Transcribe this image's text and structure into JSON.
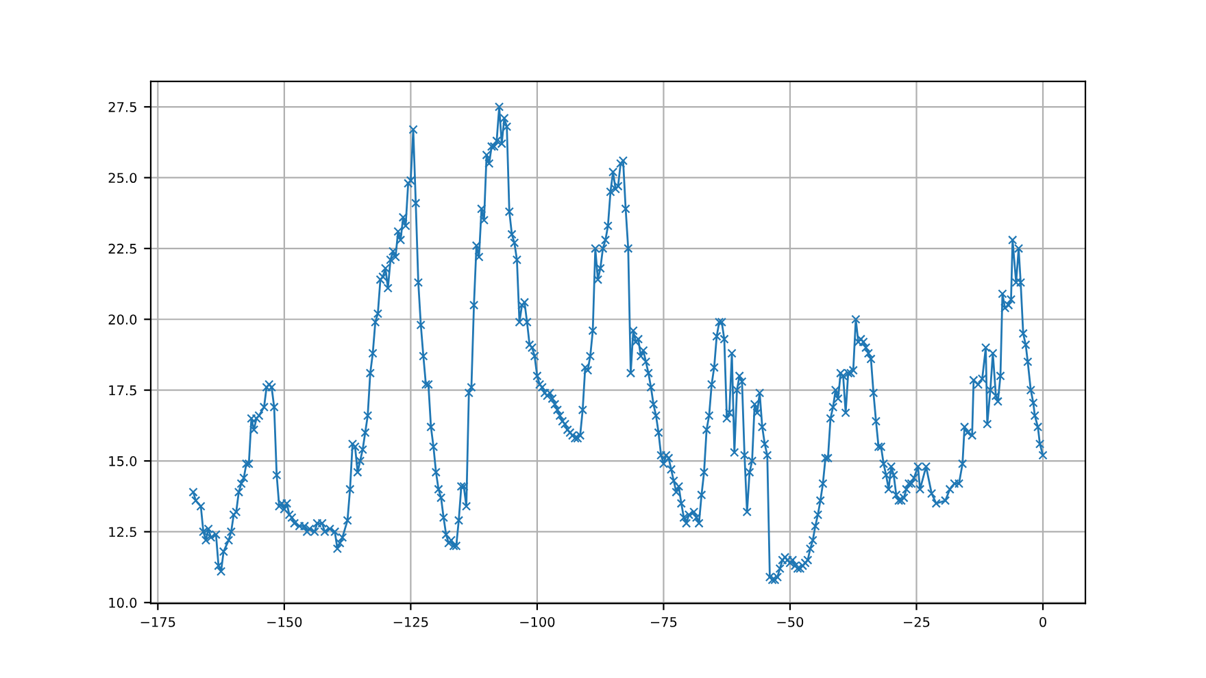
{
  "chart_data": {
    "type": "line",
    "marker": "cross",
    "line_style": "solid",
    "grid": true,
    "x": [
      -168,
      -167.5,
      -166.5,
      -166,
      -165.5,
      -165,
      -164.5,
      -163.5,
      -163,
      -162.5,
      -162,
      -161,
      -160.5,
      -160,
      -159.5,
      -159,
      -158.5,
      -158,
      -157.5,
      -157,
      -156.5,
      -156,
      -155.5,
      -155,
      -154,
      -153.5,
      -153,
      -152.5,
      -152,
      -151.5,
      -151,
      -150.5,
      -150,
      -149.5,
      -149,
      -148.5,
      -148,
      -147,
      -146,
      -145.5,
      -145,
      -144,
      -143.5,
      -142.5,
      -142,
      -141,
      -140,
      -139.5,
      -139,
      -138.5,
      -137.5,
      -137,
      -136.5,
      -136,
      -135.5,
      -135,
      -134.5,
      -134,
      -133.5,
      -133,
      -132.5,
      -132,
      -131.5,
      -131,
      -130.5,
      -130,
      -129.5,
      -129,
      -128.5,
      -128,
      -127.5,
      -127,
      -126.5,
      -126,
      -125.5,
      -125,
      -124.5,
      -124,
      -123.5,
      -123,
      -122.5,
      -122,
      -121.5,
      -121,
      -120.5,
      -120,
      -119.5,
      -119,
      -118.5,
      -118,
      -117.5,
      -117,
      -116.5,
      -116,
      -115.5,
      -115,
      -114.5,
      -114,
      -113.5,
      -113,
      -112.5,
      -112,
      -111.5,
      -111,
      -110.5,
      -110,
      -109.5,
      -109,
      -108.5,
      -108,
      -107.5,
      -107,
      -106.5,
      -106,
      -105.5,
      -105,
      -104.5,
      -104,
      -103.5,
      -103,
      -102.5,
      -102,
      -101.5,
      -101,
      -100.5,
      -100,
      -99.5,
      -99,
      -98.5,
      -98,
      -97.5,
      -97,
      -96.5,
      -96,
      -95.5,
      -95,
      -94.5,
      -94,
      -93.5,
      -93,
      -92.5,
      -92,
      -91.5,
      -91,
      -90.5,
      -90,
      -89.5,
      -89,
      -88.5,
      -88,
      -87.5,
      -87,
      -86.5,
      -86,
      -85.5,
      -85,
      -84.5,
      -84,
      -83.5,
      -83,
      -82.5,
      -82,
      -81.5,
      -81,
      -80.5,
      -80,
      -79.5,
      -79,
      -78.5,
      -78,
      -77.5,
      -77,
      -76.5,
      -76,
      -75.5,
      -75,
      -74.5,
      -74,
      -73.5,
      -73,
      -72.5,
      -72,
      -71.5,
      -71,
      -70.5,
      -70,
      -69,
      -68.5,
      -68,
      -67.5,
      -67,
      -66.5,
      -66,
      -65.5,
      -65,
      -64.5,
      -64,
      -63.5,
      -63,
      -62.5,
      -62,
      -61.5,
      -61,
      -60.5,
      -60,
      -59.5,
      -59,
      -58.5,
      -58,
      -57.5,
      -57,
      -56.5,
      -56,
      -55.5,
      -55,
      -54.5,
      -54,
      -53.5,
      -53,
      -52.5,
      -52,
      -51.5,
      -51,
      -50.5,
      -50,
      -49.5,
      -49,
      -48.5,
      -48,
      -47.5,
      -47,
      -46.5,
      -46,
      -45.5,
      -45,
      -44.5,
      -44,
      -43.5,
      -43,
      -42.5,
      -42,
      -41.5,
      -41,
      -40.5,
      -40,
      -39.5,
      -39,
      -38.5,
      -38,
      -37.5,
      -37,
      -36.5,
      -36,
      -35.5,
      -35,
      -34.5,
      -34,
      -33.5,
      -33,
      -32.5,
      -32,
      -31.5,
      -31,
      -30.5,
      -30,
      -29.5,
      -29,
      -28.5,
      -28,
      -27.5,
      -27,
      -26.5,
      -26,
      -25.5,
      -24.7,
      -24.3,
      -23.1,
      -22.0,
      -21.1,
      -19.3,
      -18.4,
      -17.5,
      -16.6,
      -15.9,
      -15.5,
      -14.9,
      -14.0,
      -13.7,
      -12.8,
      -12.0,
      -11.3,
      -11.0,
      -10.4,
      -9.9,
      -9.3,
      -8.9,
      -8.4,
      -8.0,
      -7.5,
      -6.8,
      -6.3,
      -6.0,
      -5.3,
      -4.8,
      -4.4,
      -3.9,
      -3.4,
      -3.0,
      -2.4,
      -1.9,
      -1.6,
      -1.0,
      -0.6,
      0
    ],
    "series": [
      {
        "color": "#1f77b4",
        "values": [
          13.9,
          13.6,
          13.4,
          12.5,
          12.2,
          12.6,
          12.3,
          12.4,
          11.3,
          11.1,
          11.8,
          12.2,
          12.5,
          13.1,
          13.2,
          13.9,
          14.2,
          14.4,
          14.9,
          14.9,
          16.5,
          16.1,
          16.5,
          16.6,
          16.9,
          17.6,
          17.7,
          17.6,
          16.9,
          14.5,
          13.4,
          13.5,
          13.3,
          13.5,
          13.1,
          13.0,
          12.8,
          12.7,
          12.7,
          12.5,
          12.6,
          12.5,
          12.8,
          12.8,
          12.5,
          12.6,
          12.5,
          11.9,
          12.1,
          12.3,
          12.9,
          14.0,
          15.6,
          15.5,
          14.6,
          15.0,
          15.4,
          16.0,
          16.6,
          18.1,
          18.8,
          19.9,
          20.2,
          21.4,
          21.5,
          21.8,
          21.1,
          22.1,
          22.4,
          22.2,
          23.1,
          22.8,
          23.6,
          23.3,
          24.8,
          24.9,
          26.7,
          24.1,
          21.3,
          19.8,
          18.7,
          17.7,
          17.7,
          16.2,
          15.5,
          14.6,
          14.0,
          13.7,
          13.0,
          12.4,
          12.1,
          12.2,
          12.0,
          12.0,
          12.9,
          14.1,
          14.1,
          13.4,
          17.4,
          17.6,
          20.5,
          22.6,
          22.2,
          23.9,
          23.5,
          25.8,
          25.5,
          26.1,
          26.1,
          26.3,
          27.5,
          26.2,
          27.1,
          26.8,
          23.8,
          23.0,
          22.7,
          22.1,
          19.9,
          20.5,
          20.6,
          19.9,
          19.1,
          19.0,
          18.7,
          18.0,
          17.7,
          17.6,
          17.4,
          17.3,
          17.4,
          17.2,
          17.0,
          16.8,
          16.6,
          16.4,
          16.3,
          16.1,
          16.0,
          15.9,
          15.8,
          15.8,
          15.9,
          16.8,
          18.3,
          18.2,
          18.7,
          19.6,
          22.5,
          21.4,
          21.8,
          22.5,
          22.8,
          23.3,
          24.5,
          25.2,
          24.6,
          24.7,
          25.5,
          25.6,
          23.9,
          22.5,
          18.1,
          19.6,
          19.2,
          19.3,
          18.7,
          18.9,
          18.5,
          18.1,
          17.6,
          17.0,
          16.6,
          16.0,
          15.2,
          14.9,
          15.2,
          15.1,
          14.7,
          14.3,
          13.9,
          14.1,
          13.5,
          13.0,
          12.8,
          13.1,
          13.2,
          13.0,
          12.8,
          13.8,
          14.6,
          16.1,
          16.6,
          17.7,
          18.3,
          19.4,
          19.9,
          19.9,
          19.3,
          16.5,
          16.7,
          18.8,
          15.3,
          17.5,
          18.0,
          17.8,
          15.2,
          13.2,
          14.6,
          15.0,
          17.0,
          16.7,
          17.4,
          16.2,
          15.6,
          15.2,
          10.9,
          10.8,
          10.8,
          10.9,
          11.2,
          11.5,
          11.6,
          11.5,
          11.4,
          11.5,
          11.3,
          11.2,
          11.2,
          11.3,
          11.4,
          11.5,
          11.9,
          12.2,
          12.7,
          13.1,
          13.6,
          14.2,
          15.1,
          15.1,
          16.5,
          16.9,
          17.5,
          17.2,
          18.1,
          18.0,
          16.7,
          18.1,
          18.1,
          18.2,
          20.0,
          19.2,
          19.3,
          19.2,
          19.0,
          18.8,
          18.6,
          17.4,
          16.4,
          15.5,
          15.5,
          14.9,
          14.5,
          14.0,
          14.8,
          14.5,
          13.8,
          13.6,
          13.6,
          13.7,
          14.0,
          14.2,
          14.2,
          14.4,
          14.8,
          14.0,
          14.8,
          13.85,
          13.5,
          13.6,
          14.0,
          14.2,
          14.2,
          14.9,
          16.2,
          16.0,
          15.9,
          17.85,
          17.7,
          17.9,
          19.0,
          16.3,
          17.5,
          18.8,
          17.3,
          17.1,
          18.0,
          20.9,
          20.4,
          20.5,
          20.7,
          22.8,
          21.3,
          22.5,
          21.3,
          19.5,
          19.1,
          18.5,
          17.5,
          17.05,
          16.6,
          16.2,
          15.6,
          15.2
        ]
      }
    ],
    "xlim": [
      -176.4,
      8.4
    ],
    "ylim": [
      9.97,
      28.4
    ],
    "xticks": [
      {
        "value": -175,
        "label": "−175"
      },
      {
        "value": -150,
        "label": "−150"
      },
      {
        "value": -125,
        "label": "−125"
      },
      {
        "value": -100,
        "label": "−100"
      },
      {
        "value": -75,
        "label": "−75"
      },
      {
        "value": -50,
        "label": "−50"
      },
      {
        "value": -25,
        "label": "−25"
      },
      0
    ],
    "yticks": [
      {
        "value": 10,
        "label": "10.0"
      },
      {
        "value": 12.5,
        "label": "12.5"
      },
      {
        "value": 15,
        "label": "15.0"
      },
      {
        "value": 17.5,
        "label": "17.5"
      },
      {
        "value": 20,
        "label": "20.0"
      },
      {
        "value": 22.5,
        "label": "22.5"
      },
      {
        "value": 25,
        "label": "25.0"
      },
      {
        "value": 27.5,
        "label": "27.5"
      }
    ]
  }
}
